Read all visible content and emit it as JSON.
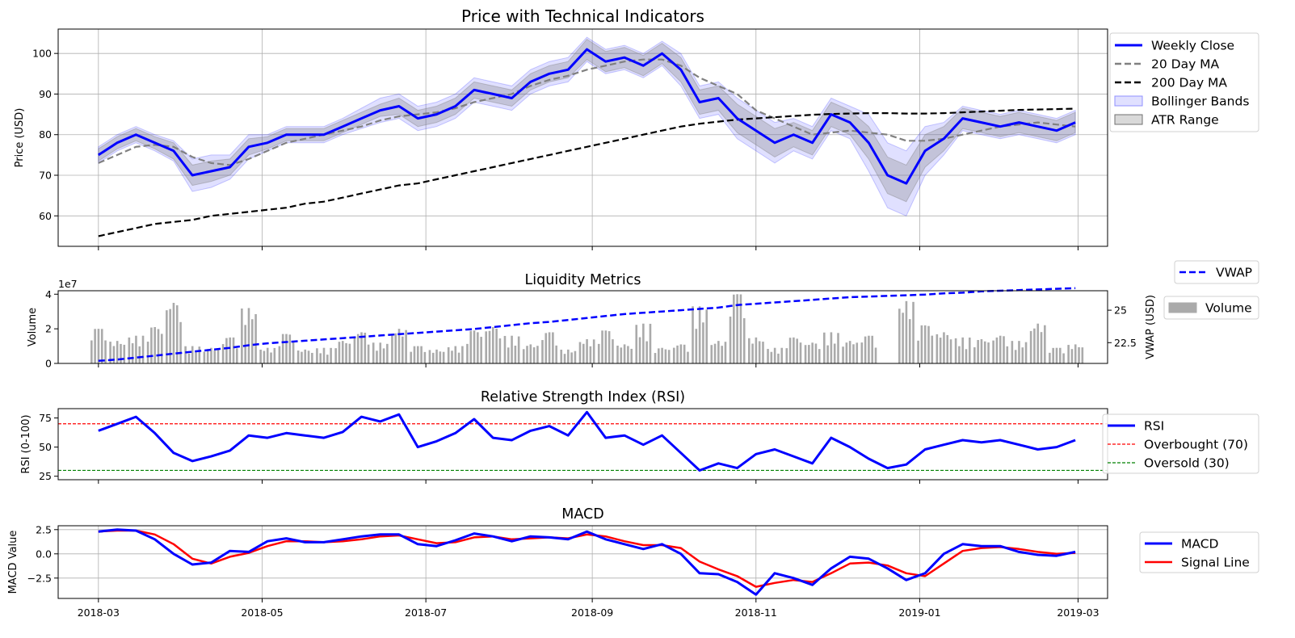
{
  "chart_data": [
    {
      "type": "line",
      "title": "Price with Technical Indicators",
      "xlabel": "",
      "ylabel": "Price (USD)",
      "xlim": [
        "2018-02-14",
        "2019-03-12"
      ],
      "ylim": [
        52.5,
        106
      ],
      "y_ticks": [
        60,
        70,
        80,
        90,
        100
      ],
      "x_ticks": [
        "2018-03",
        "2018-05",
        "2018-07",
        "2018-09",
        "2018-11",
        "2019-01",
        "2019-03"
      ],
      "x_tick_dates": [
        "2018-03-01",
        "2018-05-01",
        "2018-07-01",
        "2018-09-01",
        "2018-11-01",
        "2019-01-01",
        "2019-03-01"
      ],
      "grid": true,
      "legend_position": "outside-right-top",
      "x": [
        "2018-03-01",
        "2018-03-08",
        "2018-03-15",
        "2018-03-22",
        "2018-03-29",
        "2018-04-05",
        "2018-04-12",
        "2018-04-19",
        "2018-04-26",
        "2018-05-03",
        "2018-05-10",
        "2018-05-17",
        "2018-05-24",
        "2018-05-31",
        "2018-06-07",
        "2018-06-14",
        "2018-06-21",
        "2018-06-28",
        "2018-07-05",
        "2018-07-12",
        "2018-07-19",
        "2018-07-26",
        "2018-08-02",
        "2018-08-09",
        "2018-08-16",
        "2018-08-23",
        "2018-08-30",
        "2018-09-06",
        "2018-09-13",
        "2018-09-20",
        "2018-09-27",
        "2018-10-04",
        "2018-10-11",
        "2018-10-18",
        "2018-10-25",
        "2018-11-01",
        "2018-11-08",
        "2018-11-15",
        "2018-11-22",
        "2018-11-29",
        "2018-12-06",
        "2018-12-13",
        "2018-12-20",
        "2018-12-27",
        "2019-01-03",
        "2019-01-10",
        "2019-01-17",
        "2019-01-24",
        "2019-01-31",
        "2019-02-07",
        "2019-02-14",
        "2019-02-21",
        "2019-02-28"
      ],
      "series": [
        {
          "name": "Weekly Close",
          "color": "#0000ff",
          "style": "solid",
          "values": [
            75,
            78,
            80,
            78,
            76,
            70,
            71,
            72,
            77,
            78,
            80,
            80,
            80,
            82,
            84,
            86,
            87,
            84,
            85,
            87,
            91,
            90,
            89,
            93,
            95,
            96,
            101,
            98,
            99,
            97,
            100,
            96,
            88,
            89,
            84,
            81,
            78,
            80,
            78,
            85,
            83,
            78,
            70,
            68,
            76,
            79,
            84,
            83,
            82,
            83,
            82,
            81,
            83
          ]
        },
        {
          "name": "20 Day MA",
          "color": "#808080",
          "style": "dashed",
          "values": [
            73,
            75,
            77,
            77.5,
            77,
            74.5,
            73,
            72.5,
            74,
            76,
            78,
            79,
            80,
            81,
            82,
            83.5,
            84.5,
            85,
            85.5,
            86.5,
            88,
            89,
            90,
            92,
            93.5,
            94.5,
            96,
            97,
            98,
            98.5,
            98.5,
            97,
            94,
            92,
            90,
            86,
            84,
            82,
            80,
            80.5,
            81,
            80.5,
            80,
            78.5,
            78.5,
            79,
            80,
            81,
            82,
            82.5,
            83,
            82.5,
            82
          ]
        },
        {
          "name": "200 Day MA",
          "color": "#000000",
          "style": "dashed",
          "values": [
            55,
            56,
            57,
            58,
            58.5,
            59,
            60,
            60.5,
            61,
            61.5,
            62,
            63,
            63.5,
            64.5,
            65.5,
            66.5,
            67.5,
            68,
            69,
            70,
            71,
            72,
            73,
            74,
            75,
            76,
            77,
            78,
            79,
            80,
            81,
            82,
            82.7,
            83.2,
            83.7,
            84,
            84.3,
            84.6,
            84.9,
            85.1,
            85.2,
            85.3,
            85.3,
            85.2,
            85.2,
            85.3,
            85.5,
            85.7,
            85.9,
            86.1,
            86.2,
            86.3,
            86.4
          ]
        },
        {
          "name": "Bollinger Bands",
          "color": "#0000ff",
          "style": "band",
          "half_width": [
            2,
            2,
            2,
            2,
            2.5,
            4,
            4,
            3,
            3,
            2,
            2,
            2,
            2,
            2,
            2.5,
            3,
            3,
            3,
            3,
            3,
            3,
            3,
            3,
            3,
            3,
            3,
            3,
            3,
            3,
            3,
            3,
            4,
            4,
            4,
            5,
            5,
            5,
            4,
            4,
            4,
            4,
            7,
            8,
            8,
            6,
            4,
            3,
            3,
            3,
            3,
            3,
            3,
            3
          ]
        },
        {
          "name": "ATR Range",
          "color": "#808080",
          "style": "band",
          "half_width": [
            1.5,
            1.5,
            1.5,
            1.5,
            2,
            2.5,
            2.5,
            2,
            2,
            1.5,
            1.5,
            1.5,
            1.5,
            1.5,
            1.5,
            1.5,
            2,
            2,
            2,
            2,
            2,
            2,
            2,
            2,
            2,
            2,
            2.5,
            2.5,
            2.5,
            2.5,
            2.5,
            3,
            3,
            3,
            3.5,
            3.5,
            3.5,
            3,
            3,
            3,
            3,
            4,
            4.5,
            4.5,
            4,
            3,
            2.5,
            2.5,
            2.5,
            2.5,
            2.5,
            2.5,
            2.5
          ]
        }
      ]
    },
    {
      "type": "bar",
      "title": "Liquidity Metrics",
      "ylabel": "Volume",
      "y_offset_label": "1e7",
      "ylim": [
        0,
        4.2
      ],
      "y_ticks": [
        0,
        2,
        4
      ],
      "y2label": "VWAP (USD)",
      "y2lim": [
        20.9,
        26.5
      ],
      "y2_ticks": [
        22.5,
        25.0
      ],
      "grid": false,
      "legend_position": "outside-right",
      "x": [
        "2018-03-01",
        "2018-03-08",
        "2018-03-15",
        "2018-03-22",
        "2018-03-29",
        "2018-04-05",
        "2018-04-12",
        "2018-04-19",
        "2018-04-26",
        "2018-05-03",
        "2018-05-10",
        "2018-05-17",
        "2018-05-24",
        "2018-05-31",
        "2018-06-07",
        "2018-06-14",
        "2018-06-21",
        "2018-06-28",
        "2018-07-05",
        "2018-07-12",
        "2018-07-19",
        "2018-07-26",
        "2018-08-02",
        "2018-08-09",
        "2018-08-16",
        "2018-08-23",
        "2018-08-30",
        "2018-09-06",
        "2018-09-13",
        "2018-09-20",
        "2018-09-27",
        "2018-10-04",
        "2018-10-11",
        "2018-10-18",
        "2018-10-25",
        "2018-11-01",
        "2018-11-08",
        "2018-11-15",
        "2018-11-22",
        "2018-11-29",
        "2018-12-06",
        "2018-12-13",
        "2018-12-20",
        "2018-12-27",
        "2019-01-03",
        "2019-01-10",
        "2019-01-17",
        "2019-01-24",
        "2019-01-31",
        "2019-02-07",
        "2019-02-14",
        "2019-02-21",
        "2019-02-28"
      ],
      "series": [
        {
          "name": "Volume",
          "color": "#aaaaaa",
          "axis": "left",
          "kind": "bar",
          "values": [
            2.0,
            1.3,
            1.6,
            2.1,
            3.5,
            1.0,
            0.9,
            1.5,
            3.2,
            0.9,
            1.7,
            0.8,
            0.9,
            1.3,
            1.8,
            1.2,
            2.0,
            1.0,
            0.8,
            1.0,
            1.9,
            2.1,
            1.6,
            1.1,
            1.8,
            0.8,
            1.4,
            1.9,
            1.1,
            2.3,
            0.9,
            1.1,
            3.3,
            1.3,
            4.0,
            1.5,
            0.9,
            1.5,
            1.2,
            1.8,
            1.3,
            1.6,
            0.0,
            3.6,
            2.2,
            1.8,
            1.5,
            1.4,
            1.6,
            1.3,
            2.3,
            0.9,
            1.1
          ]
        },
        {
          "name": "VWAP",
          "color": "#0000ff",
          "axis": "right",
          "kind": "line",
          "style": "dashed",
          "values": [
            21.1,
            21.2,
            21.35,
            21.5,
            21.65,
            21.8,
            21.95,
            22.1,
            22.3,
            22.45,
            22.55,
            22.65,
            22.75,
            22.85,
            22.95,
            23.05,
            23.15,
            23.25,
            23.35,
            23.45,
            23.55,
            23.7,
            23.85,
            24.0,
            24.1,
            24.25,
            24.4,
            24.55,
            24.7,
            24.8,
            24.9,
            25.0,
            25.1,
            25.2,
            25.4,
            25.5,
            25.6,
            25.7,
            25.8,
            25.9,
            26.0,
            26.05,
            26.1,
            26.15,
            26.2,
            26.3,
            26.35,
            26.45,
            26.5,
            26.55,
            26.6,
            26.65,
            26.7
          ]
        }
      ]
    },
    {
      "type": "line",
      "title": "Relative Strength Index (RSI)",
      "ylabel": "RSI (0-100)",
      "ylim": [
        22,
        83
      ],
      "y_ticks": [
        25,
        50,
        75
      ],
      "grid": false,
      "legend_position": "outside-right",
      "x": [
        "2018-03-01",
        "2018-03-08",
        "2018-03-15",
        "2018-03-22",
        "2018-03-29",
        "2018-04-05",
        "2018-04-12",
        "2018-04-19",
        "2018-04-26",
        "2018-05-03",
        "2018-05-10",
        "2018-05-17",
        "2018-05-24",
        "2018-05-31",
        "2018-06-07",
        "2018-06-14",
        "2018-06-21",
        "2018-06-28",
        "2018-07-05",
        "2018-07-12",
        "2018-07-19",
        "2018-07-26",
        "2018-08-02",
        "2018-08-09",
        "2018-08-16",
        "2018-08-23",
        "2018-08-30",
        "2018-09-06",
        "2018-09-13",
        "2018-09-20",
        "2018-09-27",
        "2018-10-04",
        "2018-10-11",
        "2018-10-18",
        "2018-10-25",
        "2018-11-01",
        "2018-11-08",
        "2018-11-15",
        "2018-11-22",
        "2018-11-29",
        "2018-12-06",
        "2018-12-13",
        "2018-12-20",
        "2018-12-27",
        "2019-01-03",
        "2019-01-10",
        "2019-01-17",
        "2019-01-24",
        "2019-01-31",
        "2019-02-07",
        "2019-02-14",
        "2019-02-21",
        "2019-02-28"
      ],
      "series": [
        {
          "name": "RSI",
          "color": "#0000ff",
          "style": "solid",
          "values": [
            64,
            70,
            76,
            62,
            45,
            38,
            42,
            47,
            60,
            58,
            62,
            60,
            58,
            63,
            76,
            72,
            78,
            50,
            55,
            62,
            74,
            58,
            56,
            64,
            68,
            60,
            80,
            58,
            60,
            52,
            60,
            45,
            30,
            36,
            32,
            44,
            48,
            42,
            36,
            58,
            50,
            40,
            32,
            35,
            48,
            52,
            56,
            54,
            56,
            52,
            48,
            50,
            56
          ]
        },
        {
          "name": "Overbought (70)",
          "color": "#ff0000",
          "style": "dashed-thin",
          "constant": 70
        },
        {
          "name": "Oversold (30)",
          "color": "#008000",
          "style": "dashed-thin",
          "constant": 30
        }
      ]
    },
    {
      "type": "line",
      "title": "MACD",
      "ylabel": "MACD Value",
      "ylim": [
        -4.6,
        2.9
      ],
      "y_ticks": [
        -2.5,
        0.0,
        2.5
      ],
      "y_tick_labels": [
        "−2.5",
        "0.0",
        "2.5"
      ],
      "grid": true,
      "legend_position": "outside-right",
      "x_ticks": [
        "2018-03",
        "2018-05",
        "2018-07",
        "2018-09",
        "2018-11",
        "2019-01",
        "2019-03"
      ],
      "x": [
        "2018-03-01",
        "2018-03-08",
        "2018-03-15",
        "2018-03-22",
        "2018-03-29",
        "2018-04-05",
        "2018-04-12",
        "2018-04-19",
        "2018-04-26",
        "2018-05-03",
        "2018-05-10",
        "2018-05-17",
        "2018-05-24",
        "2018-05-31",
        "2018-06-07",
        "2018-06-14",
        "2018-06-21",
        "2018-06-28",
        "2018-07-05",
        "2018-07-12",
        "2018-07-19",
        "2018-07-26",
        "2018-08-02",
        "2018-08-09",
        "2018-08-16",
        "2018-08-23",
        "2018-08-30",
        "2018-09-06",
        "2018-09-13",
        "2018-09-20",
        "2018-09-27",
        "2018-10-04",
        "2018-10-11",
        "2018-10-18",
        "2018-10-25",
        "2018-11-01",
        "2018-11-08",
        "2018-11-15",
        "2018-11-22",
        "2018-11-29",
        "2018-12-06",
        "2018-12-13",
        "2018-12-20",
        "2018-12-27",
        "2019-01-03",
        "2019-01-10",
        "2019-01-17",
        "2019-01-24",
        "2019-01-31",
        "2019-02-07",
        "2019-02-14",
        "2019-02-21",
        "2019-02-28"
      ],
      "series": [
        {
          "name": "MACD",
          "color": "#0000ff",
          "style": "solid",
          "values": [
            2.3,
            2.5,
            2.4,
            1.5,
            0.0,
            -1.1,
            -0.9,
            0.3,
            0.2,
            1.3,
            1.6,
            1.2,
            1.2,
            1.5,
            1.8,
            2.0,
            2.0,
            1.0,
            0.8,
            1.4,
            2.1,
            1.8,
            1.3,
            1.8,
            1.7,
            1.5,
            2.3,
            1.5,
            1.0,
            0.5,
            1.0,
            0.0,
            -2.0,
            -2.1,
            -2.9,
            -4.2,
            -2.0,
            -2.5,
            -3.2,
            -1.5,
            -0.3,
            -0.5,
            -1.5,
            -2.7,
            -2.0,
            0.0,
            1.0,
            0.8,
            0.8,
            0.2,
            -0.1,
            -0.2,
            0.2
          ]
        },
        {
          "name": "Signal Line",
          "color": "#ff0000",
          "style": "solid",
          "values": [
            2.3,
            2.4,
            2.4,
            2.0,
            1.0,
            -0.5,
            -1.0,
            -0.3,
            0.1,
            0.8,
            1.3,
            1.3,
            1.2,
            1.3,
            1.5,
            1.8,
            1.9,
            1.5,
            1.1,
            1.2,
            1.7,
            1.8,
            1.5,
            1.6,
            1.7,
            1.6,
            2.0,
            1.8,
            1.3,
            0.9,
            0.9,
            0.6,
            -0.8,
            -1.6,
            -2.3,
            -3.4,
            -3.0,
            -2.7,
            -2.9,
            -2.0,
            -1.0,
            -0.9,
            -1.2,
            -2.0,
            -2.3,
            -1.0,
            0.3,
            0.6,
            0.7,
            0.5,
            0.2,
            0.0,
            0.1
          ]
        }
      ]
    }
  ]
}
